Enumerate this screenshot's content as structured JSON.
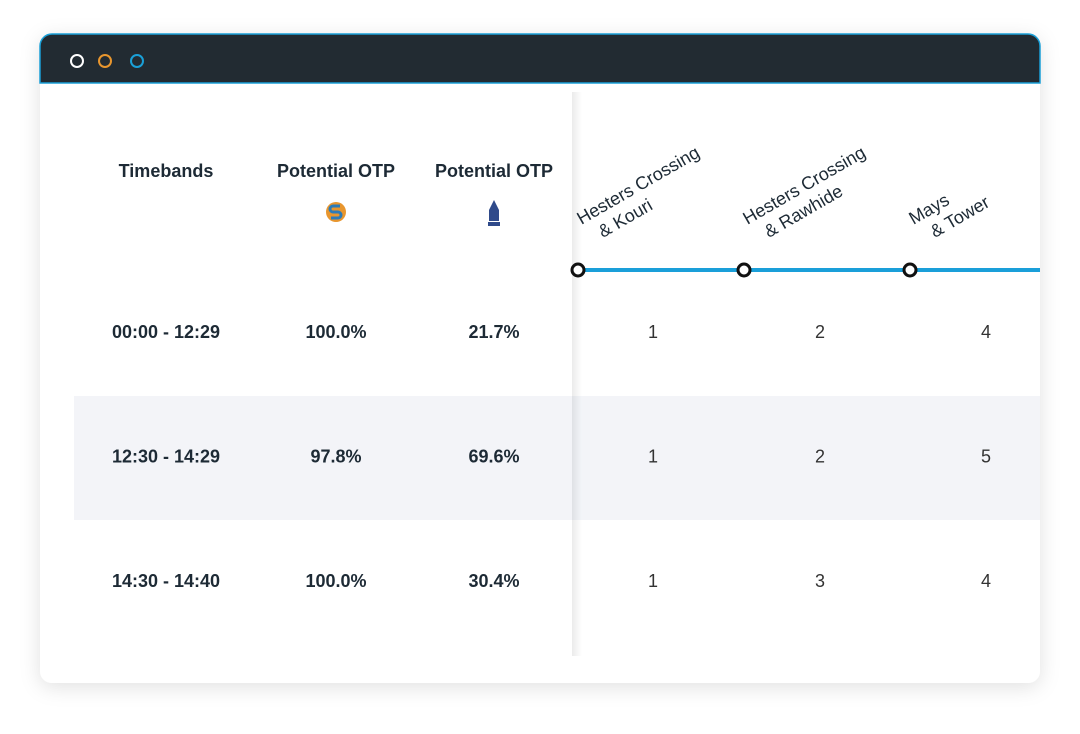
{
  "table": {
    "headers": [
      "Timebands",
      "Potential OTP",
      "Potential OTP"
    ],
    "stops": [
      [
        "Hesters Crossing",
        "& Kouri"
      ],
      [
        "Hesters Crossing",
        "& Rawhide"
      ],
      [
        "Mays",
        "& Tower"
      ]
    ],
    "rows": [
      {
        "timeband": "00:00 - 12:29",
        "otp_a": "100.0%",
        "otp_b": "21.7%",
        "stops": [
          1,
          2,
          4
        ]
      },
      {
        "timeband": "12:30 - 14:29",
        "otp_a": "97.8%",
        "otp_b": "69.6%",
        "stops": [
          1,
          2,
          5
        ]
      },
      {
        "timeband": "14:30 - 14:40",
        "otp_a": "100.0%",
        "otp_b": "30.4%",
        "stops": [
          1,
          3,
          4
        ]
      }
    ]
  }
}
